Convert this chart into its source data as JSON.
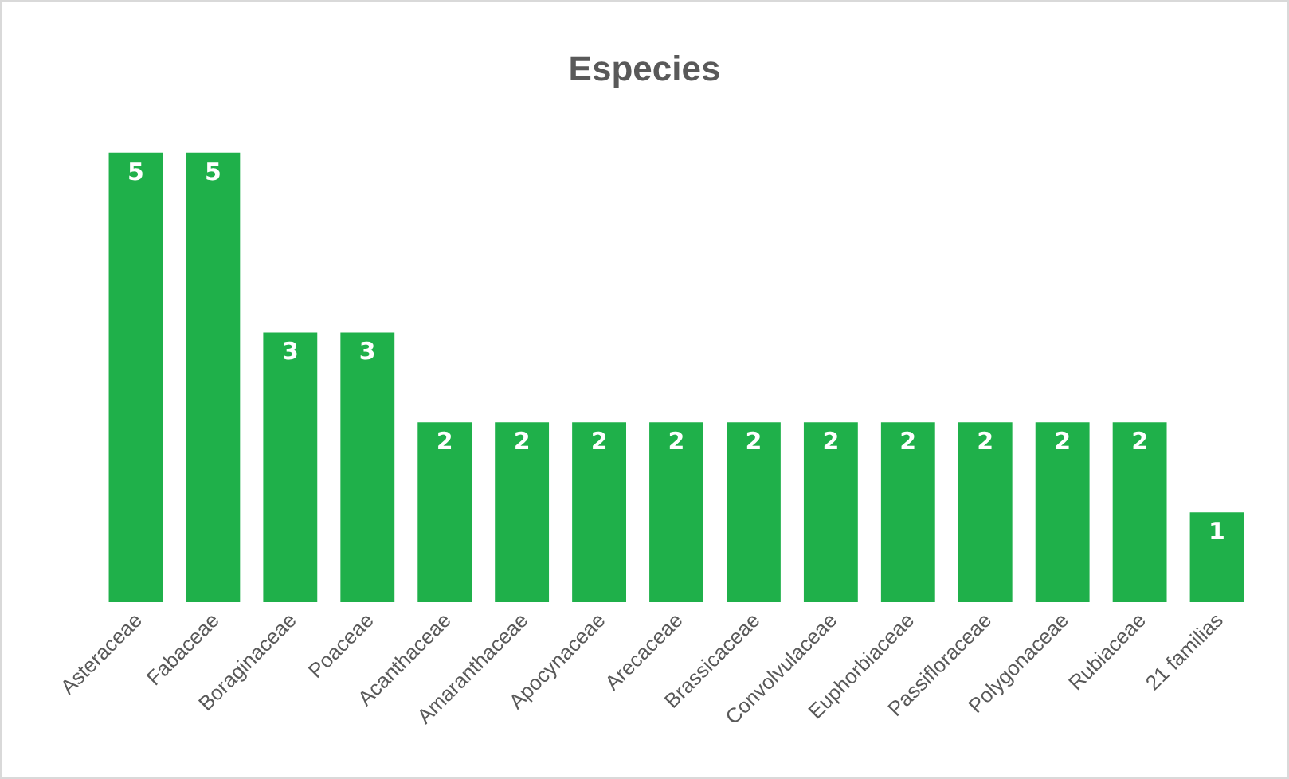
{
  "chart_data": {
    "type": "bar",
    "title": "Especies",
    "categories": [
      "Asteraceae",
      "Fabaceae",
      "Boraginaceae",
      "Poaceae",
      "Acanthaceae",
      "Amaranthaceae",
      "Apocynaceae",
      "Arecaceae",
      "Brassicaceae",
      "Convolvulaceae",
      "Euphorbiaceae",
      "Passifloraceae",
      "Polygonaceae",
      "Rubiaceae",
      "21 familias"
    ],
    "values": [
      5,
      5,
      3,
      3,
      2,
      2,
      2,
      2,
      2,
      2,
      2,
      2,
      2,
      2,
      1
    ],
    "color": "#1fb04a",
    "data_labels": true
  }
}
